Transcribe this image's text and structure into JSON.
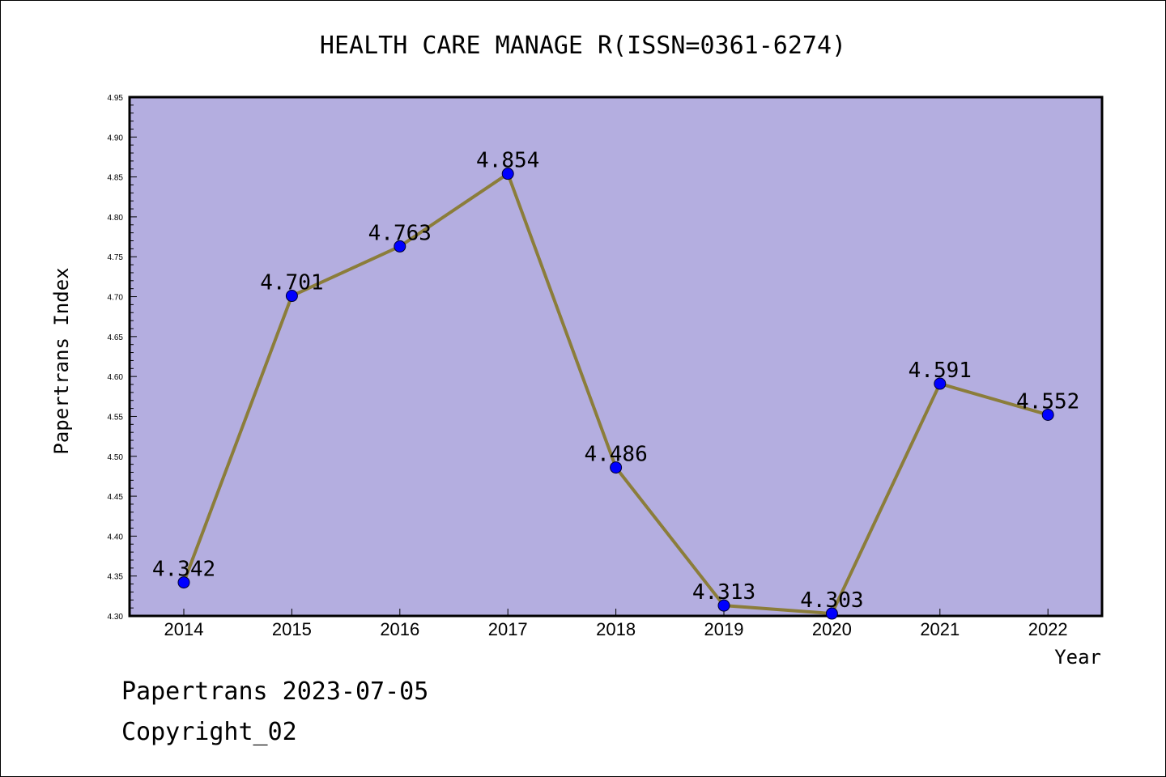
{
  "chart_data": {
    "type": "line",
    "title": "HEALTH CARE MANAGE R(ISSN=0361-6274)",
    "xlabel": "Year",
    "ylabel": "Papertrans Index",
    "categories": [
      "2014",
      "2015",
      "2016",
      "2017",
      "2018",
      "2019",
      "2020",
      "2021",
      "2022"
    ],
    "series": [
      {
        "values": [
          4.342,
          4.701,
          4.763,
          4.854,
          4.486,
          4.313,
          4.303,
          4.591,
          4.552
        ],
        "data_labels": [
          "4.342",
          "4.701",
          "4.763",
          "4.854",
          "4.486",
          "4.313",
          "4.303",
          "4.591",
          "4.552"
        ]
      }
    ],
    "ylim": [
      4.3,
      4.95
    ],
    "yticks": [
      "4.30",
      "4.35",
      "4.40",
      "4.45",
      "4.50",
      "4.55",
      "4.60",
      "4.65",
      "4.70",
      "4.75",
      "4.80",
      "4.85",
      "4.90",
      "4.95"
    ],
    "grid": false,
    "colors": {
      "plot_background": "#b4aee0",
      "line": "#8b7d3a",
      "marker": "#0000ff"
    }
  },
  "footer": {
    "line1": "Papertrans 2023-07-05",
    "line2": "Copyright_02"
  }
}
